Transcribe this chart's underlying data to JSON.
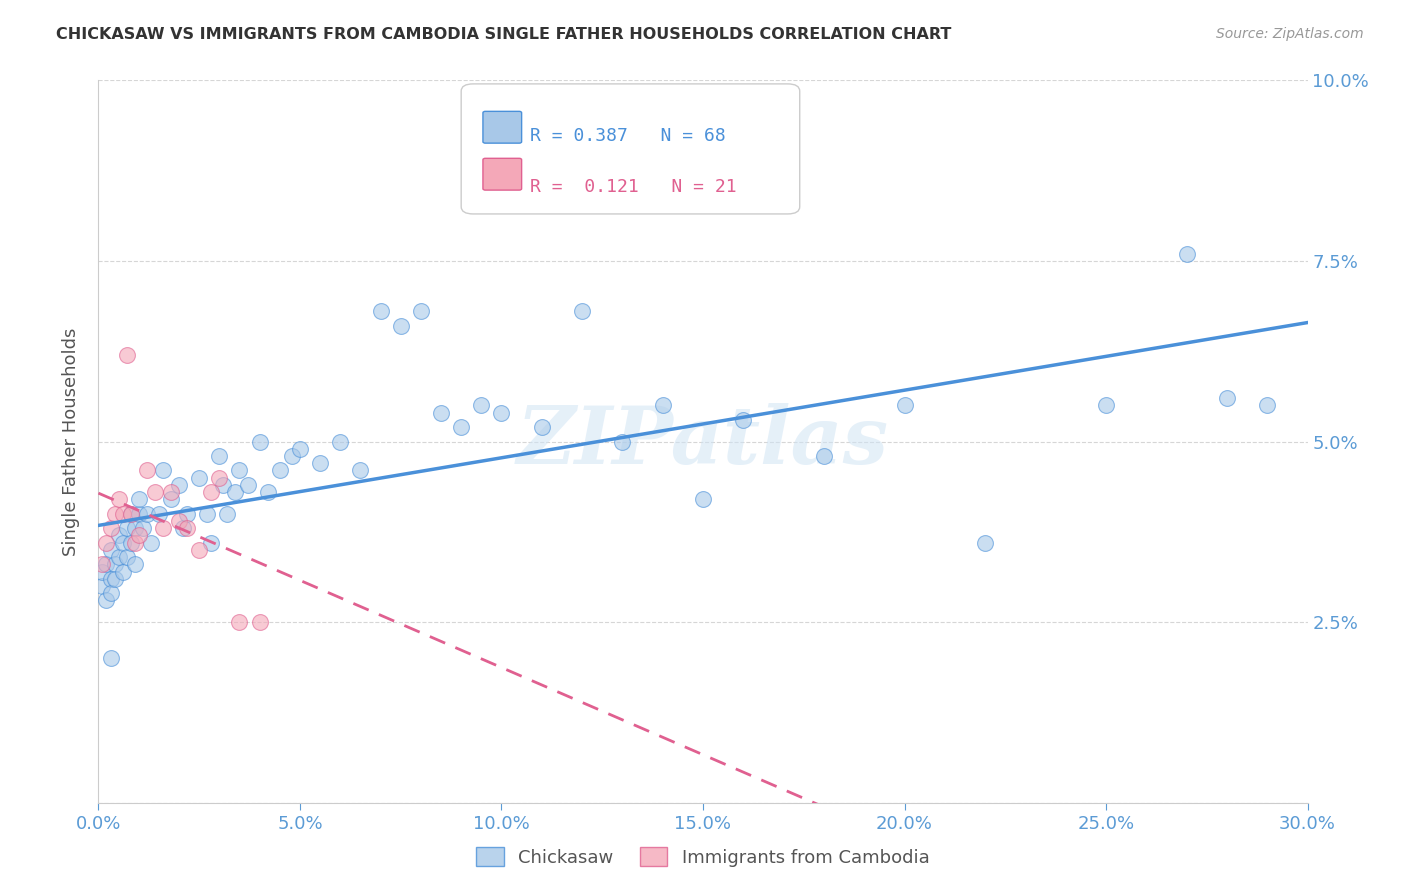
{
  "title": "CHICKASAW VS IMMIGRANTS FROM CAMBODIA SINGLE FATHER HOUSEHOLDS CORRELATION CHART",
  "source": "Source: ZipAtlas.com",
  "ylabel": "Single Father Households",
  "xlim": [
    0.0,
    0.3
  ],
  "ylim": [
    0.0,
    0.1
  ],
  "legend1_label": "Chickasaw",
  "legend2_label": "Immigrants from Cambodia",
  "R1": 0.387,
  "N1": 68,
  "R2": 0.121,
  "N2": 21,
  "color_blue": "#a8c8e8",
  "color_pink": "#f4a8b8",
  "color_blue_line": "#4a90d9",
  "color_pink_line": "#e06090",
  "color_axis_text": "#5b9bd5",
  "watermark": "ZIPatlas",
  "blue_scatter_x": [
    0.001,
    0.001,
    0.002,
    0.002,
    0.003,
    0.003,
    0.003,
    0.004,
    0.004,
    0.005,
    0.005,
    0.006,
    0.006,
    0.007,
    0.007,
    0.008,
    0.008,
    0.009,
    0.009,
    0.01,
    0.01,
    0.011,
    0.012,
    0.013,
    0.015,
    0.016,
    0.018,
    0.02,
    0.021,
    0.022,
    0.025,
    0.027,
    0.028,
    0.03,
    0.031,
    0.032,
    0.034,
    0.035,
    0.037,
    0.04,
    0.042,
    0.045,
    0.048,
    0.05,
    0.055,
    0.06,
    0.065,
    0.07,
    0.075,
    0.08,
    0.085,
    0.09,
    0.095,
    0.1,
    0.11,
    0.12,
    0.13,
    0.14,
    0.15,
    0.16,
    0.18,
    0.2,
    0.22,
    0.25,
    0.27,
    0.28,
    0.29,
    0.003
  ],
  "blue_scatter_y": [
    0.03,
    0.032,
    0.028,
    0.033,
    0.031,
    0.029,
    0.035,
    0.033,
    0.031,
    0.037,
    0.034,
    0.036,
    0.032,
    0.038,
    0.034,
    0.04,
    0.036,
    0.038,
    0.033,
    0.04,
    0.042,
    0.038,
    0.04,
    0.036,
    0.04,
    0.046,
    0.042,
    0.044,
    0.038,
    0.04,
    0.045,
    0.04,
    0.036,
    0.048,
    0.044,
    0.04,
    0.043,
    0.046,
    0.044,
    0.05,
    0.043,
    0.046,
    0.048,
    0.049,
    0.047,
    0.05,
    0.046,
    0.068,
    0.066,
    0.068,
    0.054,
    0.052,
    0.055,
    0.054,
    0.052,
    0.068,
    0.05,
    0.055,
    0.042,
    0.053,
    0.048,
    0.055,
    0.036,
    0.055,
    0.076,
    0.056,
    0.055,
    0.02
  ],
  "pink_scatter_x": [
    0.001,
    0.002,
    0.003,
    0.004,
    0.005,
    0.006,
    0.007,
    0.008,
    0.009,
    0.01,
    0.012,
    0.014,
    0.016,
    0.018,
    0.02,
    0.022,
    0.025,
    0.028,
    0.03,
    0.035,
    0.04
  ],
  "pink_scatter_y": [
    0.033,
    0.036,
    0.038,
    0.04,
    0.042,
    0.04,
    0.062,
    0.04,
    0.036,
    0.037,
    0.046,
    0.043,
    0.038,
    0.043,
    0.039,
    0.038,
    0.035,
    0.043,
    0.045,
    0.025,
    0.025
  ]
}
